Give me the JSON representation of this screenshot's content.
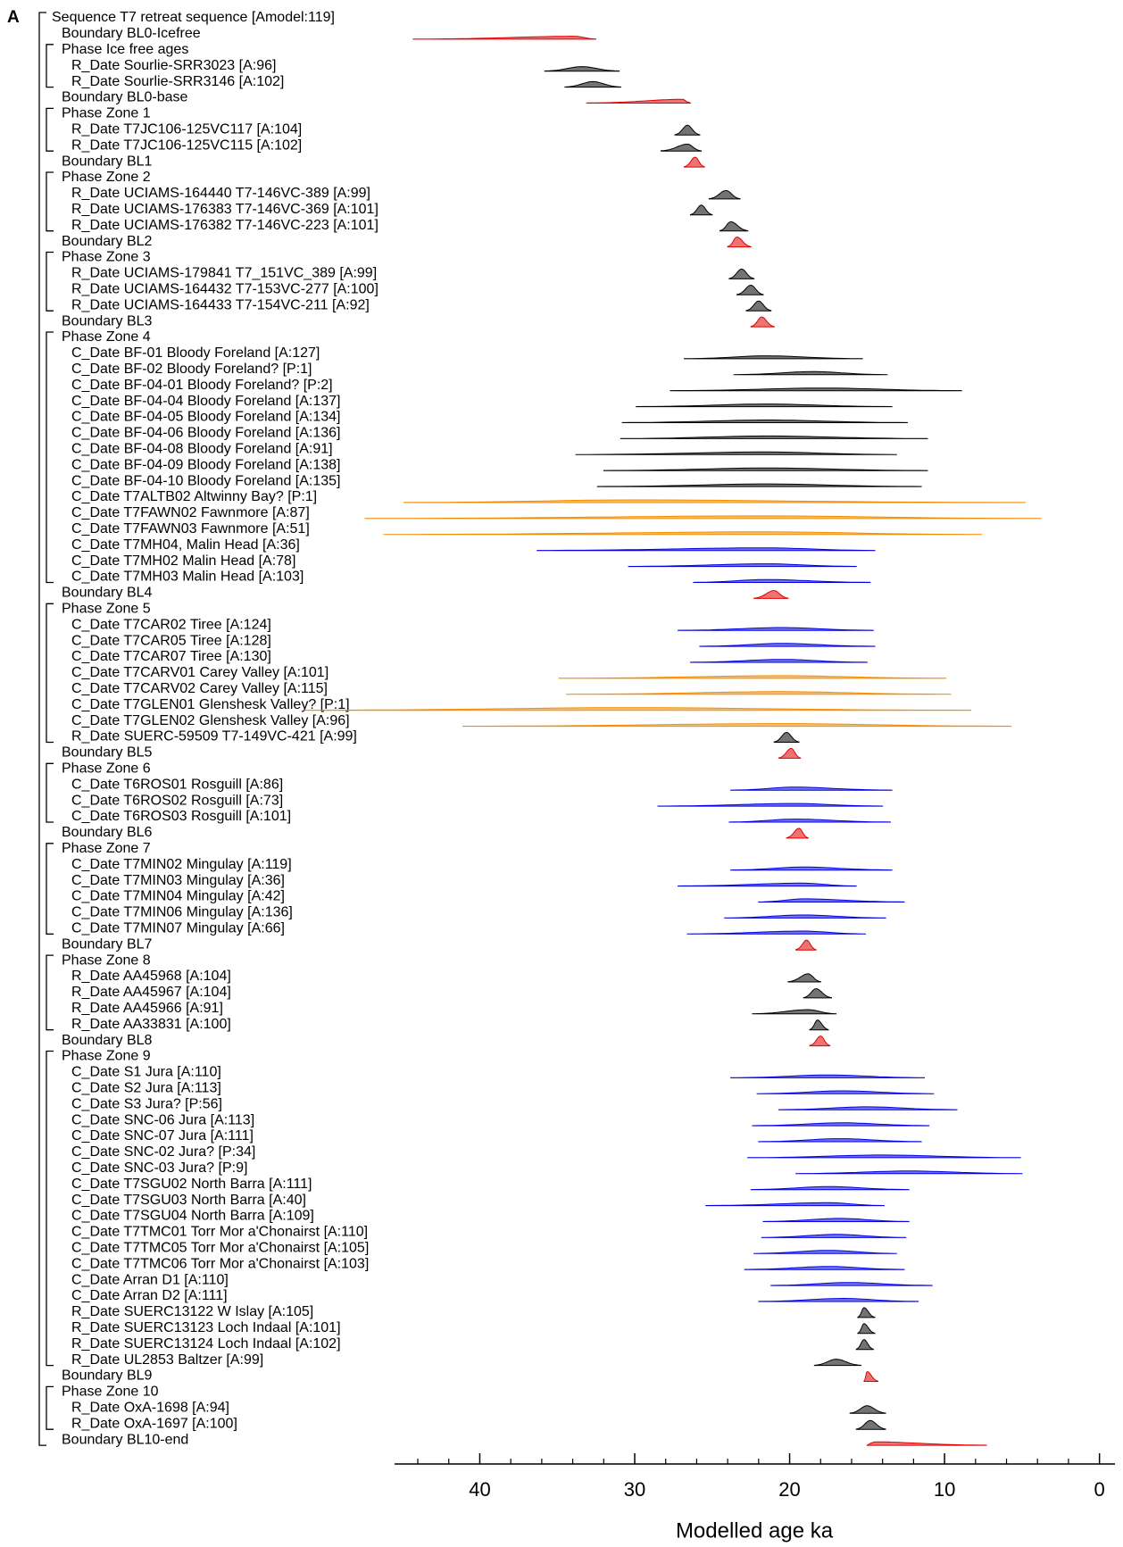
{
  "panel_label": "A",
  "chart_data": {
    "type": "oxcal",
    "xlabel": "Modelled age ka",
    "xlim": [
      45.5,
      -1
    ],
    "xticks": [
      0,
      10,
      20,
      30,
      40
    ],
    "xminor": [
      2,
      4,
      6,
      8,
      12,
      14,
      16,
      18,
      22,
      24,
      26,
      28,
      32,
      34,
      36,
      38,
      42,
      44
    ],
    "sequence": {
      "label": "Sequence T7 retreat sequence [Amodel:119]",
      "items": [
        {
          "label": "Boundary BL0-Icefree",
          "color": "#e00000",
          "peak": 33.8,
          "range": [
            44.3,
            32.5
          ]
        },
        {
          "label": "Phase Ice free ages",
          "dates": [
            {
              "label": "R_Date Sourlie-SRR3023 [A:96]",
              "color": "#000000",
              "peak": 33.4,
              "range": [
                35.8,
                31.0
              ]
            },
            {
              "label": "R_Date Sourlie-SRR3146 [A:102]",
              "color": "#000000",
              "peak": 32.7,
              "range": [
                34.5,
                30.9
              ]
            }
          ]
        },
        {
          "label": "Boundary BL0-base",
          "color": "#e00000",
          "peak": 26.9,
          "range": [
            33.1,
            26.4
          ]
        },
        {
          "label": "Phase Zone 1",
          "dates": [
            {
              "label": "R_Date T7JC106-125VC117 [A:104]",
              "color": "#000000",
              "peak": 26.6,
              "range": [
                27.4,
                25.8
              ]
            },
            {
              "label": "R_Date T7JC106-125VC115 [A:102]",
              "color": "#000000",
              "peak": 26.6,
              "range": [
                28.3,
                25.7
              ]
            }
          ]
        },
        {
          "label": "Boundary BL1",
          "color": "#e00000",
          "peak": 26.1,
          "range": [
            26.8,
            25.5
          ]
        },
        {
          "label": "Phase Zone 2",
          "dates": [
            {
              "label": "R_Date UCIAMS-164440 T7-146VC-389 [A:99]",
              "color": "#000000",
              "peak": 24.1,
              "range": [
                25.2,
                23.2
              ]
            },
            {
              "label": "R_Date UCIAMS-176383 T7-146VC-369 [A:101]",
              "color": "#000000",
              "peak": 25.7,
              "range": [
                26.4,
                25.0
              ]
            },
            {
              "label": "R_Date UCIAMS-176382 T7-146VC-223 [A:101]",
              "color": "#000000",
              "peak": 23.8,
              "range": [
                24.5,
                22.7
              ]
            }
          ]
        },
        {
          "label": "Boundary BL2",
          "color": "#e00000",
          "peak": 23.4,
          "range": [
            24.0,
            22.5
          ]
        },
        {
          "label": "Phase Zone 3",
          "dates": [
            {
              "label": "R_Date UCIAMS-179841 T7_151VC_389 [A:99]",
              "color": "#000000",
              "peak": 23.1,
              "range": [
                23.9,
                22.3
              ]
            },
            {
              "label": "R_Date UCIAMS-164432 T7-153VC-277 [A:100]",
              "color": "#000000",
              "peak": 22.5,
              "range": [
                23.4,
                21.7
              ]
            },
            {
              "label": "R_Date UCIAMS-164433 T7-154VC-211 [A:92]",
              "color": "#000000",
              "peak": 22.0,
              "range": [
                22.8,
                21.2
              ]
            }
          ]
        },
        {
          "label": "Boundary BL3",
          "color": "#e00000",
          "peak": 21.8,
          "range": [
            22.5,
            21.0
          ]
        },
        {
          "label": "Phase Zone 4",
          "dates": [
            {
              "label": "C_Date BF-01 Bloody Foreland [A:127]",
              "color": "#000000",
              "peak": 21.5,
              "range": [
                26.8,
                15.3
              ]
            },
            {
              "label": "C_Date BF-02 Bloody Foreland? [P:1]",
              "color": "#000000",
              "peak": 18.5,
              "range": [
                23.6,
                13.7
              ]
            },
            {
              "label": "C_Date BF-04-01 Bloody Foreland? [P:2]",
              "color": "#000000",
              "peak": 17.8,
              "range": [
                27.7,
                8.9
              ]
            },
            {
              "label": "C_Date BF-04-04 Bloody Foreland [A:137]",
              "color": "#000000",
              "peak": 21.5,
              "range": [
                29.9,
                13.4
              ]
            },
            {
              "label": "C_Date BF-04-05 Bloody Foreland [A:134]",
              "color": "#000000",
              "peak": 21.5,
              "range": [
                30.8,
                12.4
              ]
            },
            {
              "label": "C_Date BF-04-06 Bloody Foreland [A:136]",
              "color": "#000000",
              "peak": 21.5,
              "range": [
                30.9,
                11.1
              ]
            },
            {
              "label": "C_Date BF-04-08 Bloody Foreland [A:91]",
              "color": "#000000",
              "peak": 21.5,
              "range": [
                33.8,
                13.1
              ]
            },
            {
              "label": "C_Date BF-04-09 Bloody Foreland [A:138]",
              "color": "#000000",
              "peak": 21.5,
              "range": [
                32.0,
                11.1
              ]
            },
            {
              "label": "C_Date BF-04-10 Bloody Foreland [A:135]",
              "color": "#000000",
              "peak": 21.5,
              "range": [
                32.4,
                11.5
              ]
            },
            {
              "label": "C_Date T7ALTB02 Altwinny Bay? [P:1]",
              "color": "#f28c00",
              "peak": 30.3,
              "range": [
                44.9,
                4.8
              ]
            },
            {
              "label": "C_Date T7FAWN02 Fawnmore [A:87]",
              "color": "#f28c00",
              "peak": 21.5,
              "range": [
                47.4,
                3.8
              ]
            },
            {
              "label": "C_Date T7FAWN03 Fawnmore [A:51]",
              "color": "#f28c00",
              "peak": 21.5,
              "range": [
                46.2,
                7.6
              ]
            },
            {
              "label": "C_Date T7MH04, Malin Head [A:36]",
              "color": "#0000e0",
              "peak": 21.5,
              "range": [
                36.3,
                14.5
              ]
            },
            {
              "label": "C_Date T7MH02 Malin Head [A:78]",
              "color": "#0000e0",
              "peak": 21.5,
              "range": [
                30.4,
                15.7
              ]
            },
            {
              "label": "C_Date T7MH03 Malin Head [A:103]",
              "color": "#0000e0",
              "peak": 21.5,
              "range": [
                26.2,
                14.8
              ]
            }
          ]
        },
        {
          "label": "Boundary BL4",
          "color": "#e00000",
          "peak": 21.0,
          "range": [
            22.3,
            20.1
          ]
        },
        {
          "label": "Phase Zone 5",
          "dates": [
            {
              "label": "C_Date T7CAR02 Tiree [A:124]",
              "color": "#0000e0",
              "peak": 20.5,
              "range": [
                27.2,
                14.6
              ]
            },
            {
              "label": "C_Date T7CAR05 Tiree [A:128]",
              "color": "#0000e0",
              "peak": 20.5,
              "range": [
                25.8,
                14.5
              ]
            },
            {
              "label": "C_Date T7CAR07 Tiree [A:130]",
              "color": "#0000e0",
              "peak": 20.5,
              "range": [
                26.4,
                15.0
              ]
            },
            {
              "label": "C_Date T7CARV01 Carey Valley [A:101]",
              "color": "#f28c00",
              "peak": 20.5,
              "range": [
                34.9,
                9.9
              ]
            },
            {
              "label": "C_Date T7CARV02 Carey Valley [A:115]",
              "color": "#f28c00",
              "peak": 20.5,
              "range": [
                34.4,
                9.6
              ]
            },
            {
              "label": "C_Date T7GLEN01 Glenshesk Valley? [P:1]",
              "color": "#f28c00",
              "peak": 30.3,
              "range": [
                51.3,
                8.3
              ]
            },
            {
              "label": "C_Date T7GLEN02 Glenshesk Valley [A:96]",
              "color": "#f28c00",
              "peak": 20.5,
              "range": [
                41.1,
                5.7
              ]
            },
            {
              "label": "R_Date SUERC-59509 T7-149VC-421 [A:99]",
              "color": "#000000",
              "peak": 20.2,
              "range": [
                21.0,
                19.4
              ]
            }
          ]
        },
        {
          "label": "Boundary BL5",
          "color": "#e00000",
          "peak": 19.9,
          "range": [
            20.7,
            19.3
          ]
        },
        {
          "label": "Phase Zone 6",
          "dates": [
            {
              "label": "C_Date T6ROS01 Rosguill [A:86]",
              "color": "#0000e0",
              "peak": 19.7,
              "range": [
                23.8,
                13.4
              ]
            },
            {
              "label": "C_Date T6ROS02 Rosguill [A:73]",
              "color": "#0000e0",
              "peak": 19.7,
              "range": [
                28.5,
                14.0
              ]
            },
            {
              "label": "C_Date T6ROS03 Rosguill [A:101]",
              "color": "#0000e0",
              "peak": 19.7,
              "range": [
                23.9,
                13.5
              ]
            }
          ]
        },
        {
          "label": "Boundary BL6",
          "color": "#e00000",
          "peak": 19.4,
          "range": [
            20.2,
            18.8
          ]
        },
        {
          "label": "Phase Zone 7",
          "dates": [
            {
              "label": "C_Date T7MIN02 Mingulay [A:119]",
              "color": "#0000e0",
              "peak": 19.1,
              "range": [
                23.8,
                13.4
              ]
            },
            {
              "label": "C_Date T7MIN03 Mingulay [A:36]",
              "color": "#0000e0",
              "peak": 19.2,
              "range": [
                27.2,
                15.7
              ]
            },
            {
              "label": "C_Date T7MIN04 Mingulay [A:42]",
              "color": "#0000e0",
              "peak": 19.1,
              "range": [
                22.0,
                12.6
              ]
            },
            {
              "label": "C_Date T7MIN06 Mingulay [A:136]",
              "color": "#0000e0",
              "peak": 19.1,
              "range": [
                24.2,
                13.8
              ]
            },
            {
              "label": "C_Date T7MIN07 Mingulay [A:66]",
              "color": "#0000e0",
              "peak": 19.1,
              "range": [
                26.6,
                15.1
              ]
            }
          ]
        },
        {
          "label": "Boundary BL7",
          "color": "#e00000",
          "peak": 18.9,
          "range": [
            19.6,
            18.3
          ]
        },
        {
          "label": "Phase Zone 8",
          "dates": [
            {
              "label": "R_Date AA45968 [A:104]",
              "color": "#000000",
              "peak": 18.8,
              "range": [
                20.1,
                18.0
              ]
            },
            {
              "label": "R_Date AA45967 [A:104]",
              "color": "#000000",
              "peak": 18.3,
              "range": [
                19.1,
                17.3
              ]
            },
            {
              "label": "R_Date AA45966 [A:91]",
              "color": "#000000",
              "peak": 18.8,
              "range": [
                22.4,
                17.0
              ]
            },
            {
              "label": "R_Date AA33831 [A:100]",
              "color": "#000000",
              "peak": 18.2,
              "range": [
                18.7,
                17.5
              ]
            }
          ]
        },
        {
          "label": "Boundary BL8",
          "color": "#e00000",
          "peak": 18.0,
          "range": [
            18.7,
            17.4
          ]
        },
        {
          "label": "Phase Zone 9",
          "dates": [
            {
              "label": "C_Date S1 Jura [A:110]",
              "color": "#0000e0",
              "peak": 17.5,
              "range": [
                23.8,
                11.3
              ]
            },
            {
              "label": "C_Date S2 Jura [A:113]",
              "color": "#0000e0",
              "peak": 16.6,
              "range": [
                22.1,
                10.7
              ]
            },
            {
              "label": "C_Date S3 Jura? [P:56]",
              "color": "#0000e0",
              "peak": 15.0,
              "range": [
                20.7,
                9.2
              ]
            },
            {
              "label": "C_Date SNC-06 Jura [A:113]",
              "color": "#0000e0",
              "peak": 16.6,
              "range": [
                22.4,
                11.0
              ]
            },
            {
              "label": "C_Date SNC-07 Jura [A:111]",
              "color": "#0000e0",
              "peak": 16.7,
              "range": [
                22.0,
                11.5
              ]
            },
            {
              "label": "C_Date SNC-02 Jura? [P:34]",
              "color": "#0000e0",
              "peak": 14.0,
              "range": [
                22.7,
                5.1
              ]
            },
            {
              "label": "C_Date SNC-03 Jura? [P:9]",
              "color": "#0000e0",
              "peak": 12.3,
              "range": [
                19.6,
                5.0
              ]
            },
            {
              "label": "C_Date T7SGU02 North Barra [A:111]",
              "color": "#0000e0",
              "peak": 17.5,
              "range": [
                22.5,
                12.3
              ]
            },
            {
              "label": "C_Date T7SGU03 North Barra [A:40]",
              "color": "#0000e0",
              "peak": 17.5,
              "range": [
                25.4,
                13.9
              ]
            },
            {
              "label": "C_Date T7SGU04 North Barra [A:109]",
              "color": "#0000e0",
              "peak": 16.7,
              "range": [
                21.7,
                12.3
              ]
            },
            {
              "label": "C_Date T7TMC01 Torr Mor a'Chonairst [A:110]",
              "color": "#0000e0",
              "peak": 17.0,
              "range": [
                21.8,
                12.5
              ]
            },
            {
              "label": "C_Date T7TMC05 Torr Mor a'Chonairst [A:105]",
              "color": "#0000e0",
              "peak": 17.5,
              "range": [
                22.3,
                13.1
              ]
            },
            {
              "label": "C_Date T7TMC06 Torr Mor a'Chonairst [A:103]",
              "color": "#0000e0",
              "peak": 17.5,
              "range": [
                22.9,
                12.6
              ]
            },
            {
              "label": "C_Date Arran D1 [A:110]",
              "color": "#0000e0",
              "peak": 16.2,
              "range": [
                21.2,
                10.8
              ]
            },
            {
              "label": "C_Date Arran D2 [A:111]",
              "color": "#0000e0",
              "peak": 16.6,
              "range": [
                22.0,
                11.7
              ]
            },
            {
              "label": "R_Date SUERC13122 W Islay [A:105]",
              "color": "#000000",
              "peak": 15.2,
              "range": [
                15.6,
                14.5
              ]
            },
            {
              "label": "R_Date SUERC13123 Loch Indaal [A:101]",
              "color": "#000000",
              "peak": 15.2,
              "range": [
                15.6,
                14.5
              ]
            },
            {
              "label": "R_Date SUERC13124 Loch Indaal [A:102]",
              "color": "#000000",
              "peak": 15.2,
              "range": [
                15.7,
                14.6
              ]
            },
            {
              "label": "R_Date UL2853 Baltzer [A:99]",
              "color": "#000000",
              "peak": 17.0,
              "range": [
                18.4,
                15.4
              ]
            }
          ]
        },
        {
          "label": "Boundary BL9",
          "color": "#e00000",
          "peak": 15.0,
          "range": [
            15.2,
            14.3
          ]
        },
        {
          "label": "Phase Zone 10",
          "dates": [
            {
              "label": "R_Date OxA-1698 [A:94]",
              "color": "#000000",
              "peak": 15.0,
              "range": [
                16.1,
                13.8
              ]
            },
            {
              "label": "R_Date OxA-1697 [A:100]",
              "color": "#000000",
              "peak": 14.8,
              "range": [
                15.7,
                13.8
              ]
            }
          ]
        },
        {
          "label": "Boundary BL10-end",
          "color": "#e00000",
          "peak": 14.6,
          "range": [
            15.0,
            7.3
          ]
        }
      ]
    }
  }
}
